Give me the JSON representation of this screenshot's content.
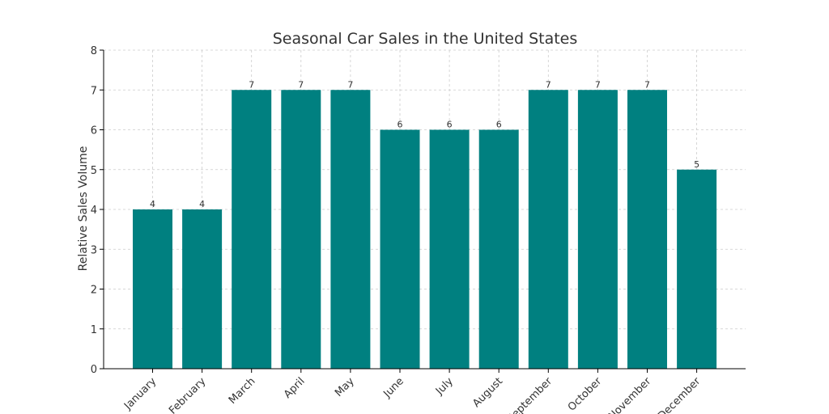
{
  "chart_data": {
    "type": "bar",
    "title": "Seasonal Car Sales in the United States",
    "xlabel": "",
    "ylabel": "Relative Sales Volume",
    "categories": [
      "January",
      "February",
      "March",
      "April",
      "May",
      "June",
      "July",
      "August",
      "September",
      "October",
      "November",
      "December"
    ],
    "values": [
      4,
      4,
      7,
      7,
      7,
      6,
      6,
      6,
      7,
      7,
      7,
      5
    ],
    "ylim": [
      0,
      8
    ],
    "yticks": [
      "0",
      "1",
      "2",
      "3",
      "4",
      "5",
      "6",
      "7",
      "8"
    ],
    "grid": true,
    "legend": "none",
    "bar_color": "#008080"
  }
}
